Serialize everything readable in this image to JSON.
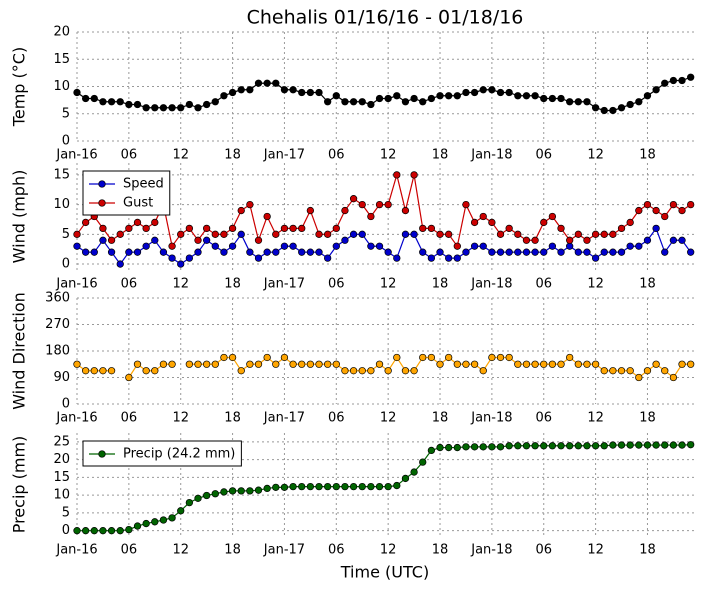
{
  "title": "Chehalis 01/16/16 - 01/18/16",
  "xlabel": "Time (UTC)",
  "chart_data": [
    {
      "type": "line",
      "ylabel": "Temp (°C)",
      "x": [
        0,
        1,
        2,
        3,
        4,
        5,
        6,
        7,
        8,
        9,
        10,
        11,
        12,
        13,
        14,
        15,
        16,
        17,
        18,
        19,
        20,
        21,
        22,
        23,
        24,
        25,
        26,
        27,
        28,
        29,
        30,
        31,
        32,
        33,
        34,
        35,
        36,
        37,
        38,
        39,
        40,
        41,
        42,
        43,
        44,
        45,
        46,
        47,
        48,
        49,
        50,
        51,
        52,
        53,
        54,
        55,
        56,
        57,
        58,
        59,
        60,
        61,
        62,
        63,
        64,
        65,
        66,
        67,
        68,
        69,
        70,
        71
      ],
      "xlim": [
        0,
        71.5
      ],
      "xticks": [
        {
          "value": 0,
          "label": "Jan-16"
        },
        {
          "value": 6,
          "label": "06"
        },
        {
          "value": 12,
          "label": "12"
        },
        {
          "value": 18,
          "label": "18"
        },
        {
          "value": 24,
          "label": "Jan-17"
        },
        {
          "value": 30,
          "label": "06"
        },
        {
          "value": 36,
          "label": "12"
        },
        {
          "value": 42,
          "label": "18"
        },
        {
          "value": 48,
          "label": "Jan-18"
        },
        {
          "value": 54,
          "label": "06"
        },
        {
          "value": 60,
          "label": "12"
        },
        {
          "value": 66,
          "label": "18"
        }
      ],
      "ylim": [
        0,
        20
      ],
      "yticks": [
        0,
        5,
        10,
        15,
        20
      ],
      "grid": true,
      "series": [
        {
          "name": "Temp",
          "color": "#000000",
          "values": [
            8.9,
            7.8,
            7.8,
            7.2,
            7.2,
            7.2,
            6.7,
            6.7,
            6.1,
            6.1,
            6.1,
            6.1,
            6.1,
            6.7,
            6.1,
            6.7,
            7.2,
            8.3,
            8.9,
            9.4,
            9.4,
            10.6,
            10.6,
            10.6,
            9.4,
            9.4,
            8.9,
            8.9,
            8.9,
            7.2,
            8.3,
            7.2,
            7.2,
            7.2,
            6.7,
            7.8,
            7.8,
            8.3,
            7.2,
            7.8,
            7.2,
            7.8,
            8.3,
            8.3,
            8.3,
            8.9,
            8.9,
            9.4,
            9.4,
            8.9,
            8.9,
            8.3,
            8.3,
            8.3,
            7.8,
            7.8,
            7.8,
            7.2,
            7.2,
            7.2,
            6.1,
            5.6,
            5.6,
            6.1,
            6.7,
            7.2,
            8.3,
            9.4,
            10.6,
            11.1,
            11.1,
            11.7
          ]
        }
      ]
    },
    {
      "type": "line",
      "ylabel": "Wind (mph)",
      "x": [
        0,
        1,
        2,
        3,
        4,
        5,
        6,
        7,
        8,
        9,
        10,
        11,
        12,
        13,
        14,
        15,
        16,
        17,
        18,
        19,
        20,
        21,
        22,
        23,
        24,
        25,
        26,
        27,
        28,
        29,
        30,
        31,
        32,
        33,
        34,
        35,
        36,
        37,
        38,
        39,
        40,
        41,
        42,
        43,
        44,
        45,
        46,
        47,
        48,
        49,
        50,
        51,
        52,
        53,
        54,
        55,
        56,
        57,
        58,
        59,
        60,
        61,
        62,
        63,
        64,
        65,
        66,
        67,
        68,
        69,
        70,
        71
      ],
      "xlim": [
        0,
        71.5
      ],
      "xticks": [
        {
          "value": 0,
          "label": "Jan-16"
        },
        {
          "value": 6,
          "label": "06"
        },
        {
          "value": 12,
          "label": "12"
        },
        {
          "value": 18,
          "label": "18"
        },
        {
          "value": 24,
          "label": "Jan-17"
        },
        {
          "value": 30,
          "label": "06"
        },
        {
          "value": 36,
          "label": "12"
        },
        {
          "value": 42,
          "label": "18"
        },
        {
          "value": 48,
          "label": "Jan-18"
        },
        {
          "value": 54,
          "label": "06"
        },
        {
          "value": 60,
          "label": "12"
        },
        {
          "value": 66,
          "label": "18"
        }
      ],
      "ylim": [
        -1,
        17
      ],
      "yticks": [
        0,
        5,
        10,
        15
      ],
      "grid": true,
      "legend": "upper left",
      "series": [
        {
          "name": "Speed",
          "color": "#0000cc",
          "values": [
            3,
            2,
            2,
            4,
            2,
            0,
            2,
            2,
            3,
            4,
            2,
            1,
            0,
            1,
            2,
            4,
            3,
            2,
            3,
            5,
            2,
            1,
            2,
            2,
            3,
            3,
            2,
            2,
            2,
            1,
            3,
            4,
            5,
            5,
            3,
            3,
            2,
            1,
            5,
            5,
            2,
            1,
            2,
            1,
            1,
            2,
            3,
            3,
            2,
            2,
            2,
            2,
            2,
            2,
            2,
            3,
            2,
            3,
            2,
            2,
            1,
            2,
            2,
            2,
            3,
            3,
            4,
            6,
            2,
            4,
            4,
            2
          ]
        },
        {
          "name": "Gust",
          "color": "#cc0000",
          "values": [
            5,
            7,
            8,
            6,
            4,
            5,
            6,
            7,
            6,
            7,
            10,
            3,
            5,
            6,
            4,
            6,
            5,
            5,
            6,
            9,
            10,
            4,
            8,
            5,
            6,
            6,
            6,
            9,
            5,
            5,
            6,
            9,
            11,
            10,
            8,
            10,
            10,
            15,
            9,
            15,
            6,
            6,
            5,
            5,
            3,
            10,
            7,
            8,
            7,
            5,
            6,
            5,
            4,
            4,
            7,
            8,
            6,
            4,
            5,
            4,
            5,
            5,
            5,
            6,
            7,
            9,
            10,
            9,
            8,
            10,
            9,
            10
          ]
        }
      ]
    },
    {
      "type": "line",
      "ylabel": "Wind Direction",
      "x": [
        0,
        1,
        2,
        3,
        4,
        5,
        6,
        7,
        8,
        9,
        10,
        11,
        12,
        13,
        14,
        15,
        16,
        17,
        18,
        19,
        20,
        21,
        22,
        23,
        24,
        25,
        26,
        27,
        28,
        29,
        30,
        31,
        32,
        33,
        34,
        35,
        36,
        37,
        38,
        39,
        40,
        41,
        42,
        43,
        44,
        45,
        46,
        47,
        48,
        49,
        50,
        51,
        52,
        53,
        54,
        55,
        56,
        57,
        58,
        59,
        60,
        61,
        62,
        63,
        64,
        65,
        66,
        67,
        68,
        69,
        70,
        71
      ],
      "xlim": [
        0,
        71.5
      ],
      "xticks": [
        {
          "value": 0,
          "label": "Jan-16"
        },
        {
          "value": 6,
          "label": "06"
        },
        {
          "value": 12,
          "label": "12"
        },
        {
          "value": 18,
          "label": "18"
        },
        {
          "value": 24,
          "label": "Jan-17"
        },
        {
          "value": 30,
          "label": "06"
        },
        {
          "value": 36,
          "label": "12"
        },
        {
          "value": 42,
          "label": "18"
        },
        {
          "value": 48,
          "label": "Jan-18"
        },
        {
          "value": 54,
          "label": "06"
        },
        {
          "value": 60,
          "label": "12"
        },
        {
          "value": 66,
          "label": "18"
        }
      ],
      "ylim": [
        0,
        360
      ],
      "yticks": [
        0,
        90,
        180,
        270,
        360
      ],
      "grid": true,
      "series": [
        {
          "name": "Direction",
          "color": "#ffa500",
          "values": [
            135,
            113,
            113,
            113,
            113,
            null,
            90,
            135,
            113,
            113,
            135,
            135,
            null,
            135,
            135,
            135,
            135,
            158,
            158,
            113,
            135,
            135,
            158,
            135,
            158,
            135,
            135,
            135,
            135,
            135,
            135,
            113,
            113,
            113,
            113,
            135,
            113,
            158,
            113,
            113,
            158,
            158,
            135,
            158,
            135,
            135,
            135,
            113,
            158,
            158,
            158,
            135,
            135,
            135,
            135,
            135,
            135,
            158,
            135,
            135,
            135,
            113,
            113,
            113,
            113,
            90,
            113,
            135,
            113,
            90,
            135,
            135
          ]
        }
      ]
    },
    {
      "type": "line",
      "ylabel": "Precip (mm)",
      "x": [
        0,
        1,
        2,
        3,
        4,
        5,
        6,
        7,
        8,
        9,
        10,
        11,
        12,
        13,
        14,
        15,
        16,
        17,
        18,
        19,
        20,
        21,
        22,
        23,
        24,
        25,
        26,
        27,
        28,
        29,
        30,
        31,
        32,
        33,
        34,
        35,
        36,
        37,
        38,
        39,
        40,
        41,
        42,
        43,
        44,
        45,
        46,
        47,
        48,
        49,
        50,
        51,
        52,
        53,
        54,
        55,
        56,
        57,
        58,
        59,
        60,
        61,
        62,
        63,
        64,
        65,
        66,
        67,
        68,
        69,
        70,
        71
      ],
      "xlim": [
        0,
        71.5
      ],
      "xticks": [
        {
          "value": 0,
          "label": "Jan-16"
        },
        {
          "value": 6,
          "label": "06"
        },
        {
          "value": 12,
          "label": "12"
        },
        {
          "value": 18,
          "label": "18"
        },
        {
          "value": 24,
          "label": "Jan-17"
        },
        {
          "value": 30,
          "label": "06"
        },
        {
          "value": 36,
          "label": "12"
        },
        {
          "value": 42,
          "label": "18"
        },
        {
          "value": 48,
          "label": "Jan-18"
        },
        {
          "value": 54,
          "label": "06"
        },
        {
          "value": 60,
          "label": "12"
        },
        {
          "value": 66,
          "label": "18"
        }
      ],
      "ylim": [
        -1.5,
        27.5
      ],
      "yticks": [
        0,
        5,
        10,
        15,
        20,
        25
      ],
      "grid": true,
      "legend": "upper left",
      "series": [
        {
          "name": "Precip (24.2 mm)",
          "color": "#006400",
          "values": [
            0,
            0,
            0,
            0,
            0,
            0,
            0.3,
            1.3,
            2,
            2.5,
            3,
            3.6,
            5.6,
            7.9,
            9.1,
            9.9,
            10.4,
            10.9,
            11.2,
            11.2,
            11.2,
            11.4,
            11.9,
            12.2,
            12.2,
            12.4,
            12.4,
            12.4,
            12.4,
            12.4,
            12.4,
            12.4,
            12.4,
            12.4,
            12.4,
            12.4,
            12.4,
            12.7,
            14.7,
            16.5,
            19.3,
            22.6,
            23.4,
            23.4,
            23.4,
            23.6,
            23.6,
            23.6,
            23.6,
            23.6,
            23.9,
            23.9,
            23.9,
            23.9,
            23.9,
            23.9,
            23.9,
            23.9,
            23.9,
            23.9,
            23.9,
            23.9,
            24.1,
            24.1,
            24.1,
            24.1,
            24.1,
            24.1,
            24.1,
            24.1,
            24.1,
            24.2
          ]
        }
      ]
    }
  ]
}
